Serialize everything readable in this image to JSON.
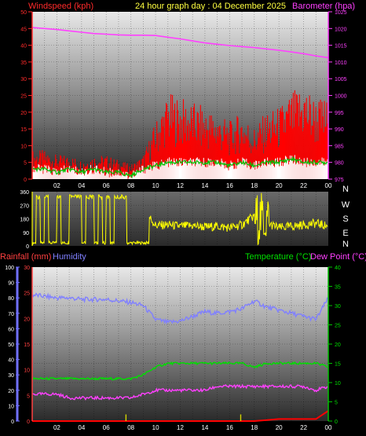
{
  "header": {
    "left_label": "Windspeed (kph)",
    "center_label": "24 hour graph day : 04 December 2025",
    "right_label": "Barometer (hpa)"
  },
  "colors": {
    "wind": "#ff2a2a",
    "gust": "#ff0000",
    "windspeed_white": "#ffffff",
    "windspeed_green": "#00c000",
    "barometer": "#ff40ff",
    "direction": "#ffff00",
    "rain": "#ff0000",
    "humidity": "#8080ff",
    "temperature": "#00e000",
    "dewpoint": "#ff40ff",
    "rain_axis": "#ff4040",
    "humidity_axis": "#7070ff",
    "temp_axis": "#00c000",
    "axis_text": "#ffffff"
  },
  "x_ticks": [
    "02",
    "04",
    "06",
    "08",
    "10",
    "12",
    "14",
    "16",
    "18",
    "20",
    "22",
    "00"
  ],
  "chart_data": [
    {
      "type": "line",
      "title": "24 hour graph day : 04 December 2025",
      "x": [
        0,
        1,
        2,
        3,
        4,
        5,
        6,
        7,
        8,
        9,
        10,
        11,
        12,
        13,
        14,
        15,
        16,
        17,
        18,
        19,
        20,
        21,
        22,
        23,
        24
      ],
      "series": [
        {
          "name": "Windspeed (kph)",
          "axis": "left",
          "values": [
            3,
            3,
            2,
            3,
            2,
            3,
            2,
            2,
            1,
            3,
            4,
            5,
            5,
            5,
            5,
            5,
            4,
            5,
            4,
            5,
            5,
            6,
            5,
            5,
            5
          ]
        },
        {
          "name": "Windspeed (kph)",
          "axis": "left",
          "style": "gust",
          "values": [
            6,
            6,
            5,
            5,
            4,
            5,
            5,
            4,
            3,
            5,
            12,
            18,
            17,
            16,
            15,
            14,
            12,
            14,
            11,
            14,
            15,
            18,
            20,
            17,
            17
          ]
        },
        {
          "name": "Barometer (hpa)",
          "axis": "right",
          "values": [
            1020.3,
            1020,
            1019.7,
            1019.3,
            1018.9,
            1018.5,
            1018.3,
            1018.1,
            1018,
            1018,
            1017.9,
            1017.4,
            1016.9,
            1016.3,
            1015.7,
            1015.3,
            1014.9,
            1014.6,
            1014.3,
            1013.9,
            1013.5,
            1013,
            1012.5,
            1011.8,
            1011.3
          ]
        }
      ],
      "left_axis": {
        "label": "Windspeed (kph)",
        "ylim": [
          0,
          50
        ],
        "ticks": [
          0,
          5,
          10,
          15,
          20,
          25,
          30,
          35,
          40,
          45,
          50
        ]
      },
      "right_axis": {
        "label": "Barometer (hpa)",
        "ylim": [
          975,
          1025
        ],
        "ticks": [
          975,
          980,
          985,
          990,
          995,
          1000,
          1005,
          1010,
          1015,
          1020,
          1025
        ]
      },
      "grid": true
    },
    {
      "type": "line",
      "x": [
        0,
        1,
        2,
        3,
        4,
        5,
        6,
        7,
        8,
        9,
        10,
        11,
        12,
        13,
        14,
        15,
        16,
        17,
        18,
        19,
        20,
        21,
        22,
        23,
        24
      ],
      "series": [
        {
          "name": "Wind direction",
          "values": [
            150,
            20,
            250,
            30,
            250,
            350,
            20,
            300,
            30,
            250,
            135,
            140,
            130,
            135,
            125,
            130,
            120,
            140,
            200,
            150,
            120,
            130,
            140,
            150,
            130
          ]
        }
      ],
      "left_axis": {
        "ylim": [
          0,
          360
        ],
        "ticks": [
          0,
          90,
          180,
          270,
          360
        ]
      },
      "compass": [
        "N",
        "W",
        "S",
        "E",
        "N"
      ],
      "grid": true
    },
    {
      "type": "line",
      "x": [
        0,
        1,
        2,
        3,
        4,
        5,
        6,
        7,
        8,
        9,
        10,
        11,
        12,
        13,
        14,
        15,
        16,
        17,
        18,
        19,
        20,
        21,
        22,
        23,
        24
      ],
      "series": [
        {
          "name": "Rainfall (mm)",
          "axis": "rain",
          "values": [
            0,
            0,
            0,
            0,
            0,
            0,
            0,
            0,
            0,
            0,
            0,
            0,
            0,
            0,
            0,
            0,
            0,
            0,
            0,
            0.2,
            0.4,
            0.4,
            0.4,
            0.4,
            2.0
          ]
        },
        {
          "name": "Humidity",
          "axis": "humidity",
          "values": [
            82,
            81,
            80,
            80,
            79,
            79,
            79,
            78,
            77,
            75,
            66,
            64,
            65,
            68,
            71,
            70,
            71,
            73,
            78,
            74,
            72,
            70,
            68,
            66,
            80
          ]
        },
        {
          "name": "Temperature (°C)",
          "axis": "temperature",
          "values": [
            11,
            11,
            11,
            11,
            11,
            11,
            11,
            11,
            11,
            12,
            14,
            15,
            15,
            15,
            15,
            15,
            15,
            15,
            14,
            15,
            15,
            15,
            15,
            15,
            14
          ]
        },
        {
          "name": "Dew Point (°C)",
          "axis": "temperature",
          "values": [
            7,
            7,
            7,
            6,
            6,
            6,
            6,
            6,
            6,
            7,
            8,
            8,
            8,
            8,
            8,
            9,
            9,
            9,
            9,
            9,
            9,
            9,
            9,
            8,
            9
          ]
        }
      ],
      "rain_axis": {
        "label": "Rainfall (mm)",
        "ylim": [
          0,
          30
        ],
        "ticks": [
          0,
          5,
          10,
          15,
          20,
          25,
          30
        ]
      },
      "humidity_axis": {
        "label": "Humidity",
        "ylim": [
          0,
          100
        ],
        "ticks": [
          0,
          10,
          20,
          30,
          40,
          50,
          60,
          70,
          80,
          90,
          100
        ]
      },
      "temperature_axis": {
        "label": "Temperature (°C)",
        "label2": "Dew Point (°C)",
        "ylim": [
          0,
          40
        ],
        "ticks": [
          0,
          5,
          10,
          15,
          20,
          25,
          30,
          35,
          40
        ]
      },
      "grid": true
    }
  ]
}
